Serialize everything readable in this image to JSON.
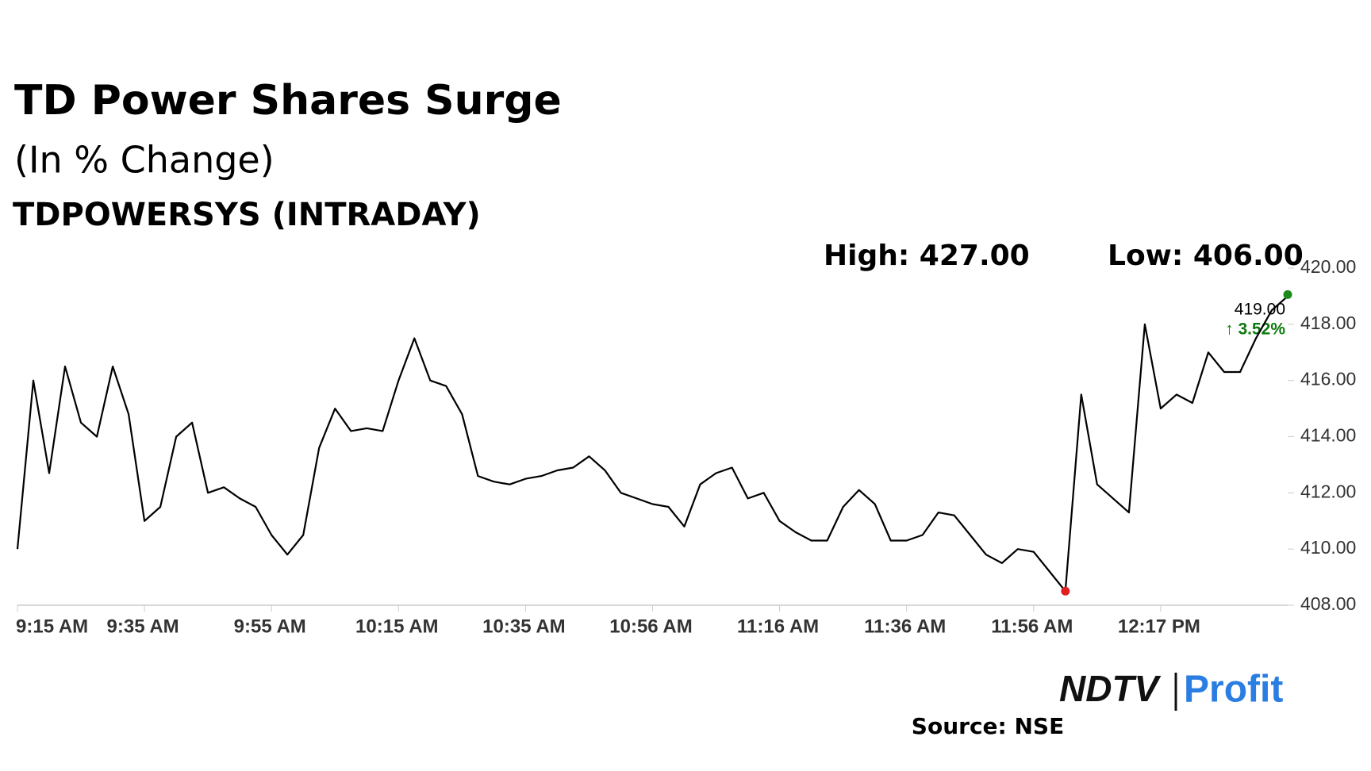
{
  "chart_data": {
    "type": "line",
    "title": "TD Power Shares Surge",
    "subtitle": "(In % Change)",
    "ticker": "TDPOWERSYS (INTRADAY)",
    "high_label": "High: 427.00",
    "low_label": "Low: 406.00",
    "last_price_label": "419.00",
    "change_label": "↑ 3.52%",
    "brand": "NDTV",
    "brand_product": "Profit",
    "source": "Source: NSE",
    "color": "#000000",
    "low_marker_color": "#e02020",
    "last_marker_color": "#1a8a1a",
    "change_color": "#0a7a0a",
    "categories": [
      "9:15 AM",
      null,
      null,
      null,
      null,
      null,
      null,
      null,
      "9:35 AM",
      null,
      null,
      null,
      null,
      null,
      null,
      null,
      "9:55 AM",
      null,
      null,
      null,
      null,
      null,
      null,
      null,
      "10:15 AM",
      null,
      null,
      null,
      null,
      null,
      null,
      null,
      "10:35 AM",
      null,
      null,
      null,
      null,
      null,
      null,
      null,
      "10:56 AM",
      null,
      null,
      null,
      null,
      null,
      null,
      null,
      "11:16 AM",
      null,
      null,
      null,
      null,
      null,
      null,
      null,
      "11:36 AM",
      null,
      null,
      null,
      null,
      null,
      null,
      null,
      "11:56 AM",
      null,
      null,
      null,
      null,
      null,
      null,
      null,
      "12:17 PM",
      null,
      null,
      null,
      null,
      null,
      null,
      null,
      null
    ],
    "values": [
      410.0,
      416.0,
      412.7,
      416.5,
      414.5,
      414.0,
      416.5,
      414.8,
      411.0,
      411.5,
      414.0,
      414.5,
      412.0,
      412.2,
      411.8,
      411.5,
      410.5,
      409.8,
      410.5,
      413.6,
      415.0,
      414.2,
      414.3,
      414.2,
      416.0,
      417.5,
      416.0,
      415.8,
      414.8,
      412.6,
      412.4,
      412.3,
      412.5,
      412.6,
      412.8,
      412.9,
      413.3,
      412.8,
      412.0,
      411.8,
      411.6,
      411.5,
      410.8,
      412.3,
      412.7,
      412.9,
      411.8,
      412.0,
      411.0,
      410.6,
      410.3,
      410.3,
      411.5,
      412.1,
      411.6,
      410.3,
      410.3,
      410.5,
      411.3,
      411.2,
      410.5,
      409.8,
      409.5,
      410.0,
      409.9,
      409.2,
      408.5,
      415.5,
      412.3,
      411.8,
      411.3,
      418.0,
      415.0,
      415.5,
      415.2,
      417.0,
      416.3,
      416.3,
      417.5,
      418.5,
      419.0
    ],
    "ylim": [
      408,
      420
    ],
    "yticks": [
      {
        "value": 408,
        "label": "408.00"
      },
      {
        "value": 410,
        "label": "410.00"
      },
      {
        "value": 412,
        "label": "412.00"
      },
      {
        "value": 414,
        "label": "414.00"
      },
      {
        "value": 416,
        "label": "416.00"
      },
      {
        "value": 418,
        "label": "418.00"
      },
      {
        "value": 420,
        "label": "420.00"
      }
    ]
  }
}
